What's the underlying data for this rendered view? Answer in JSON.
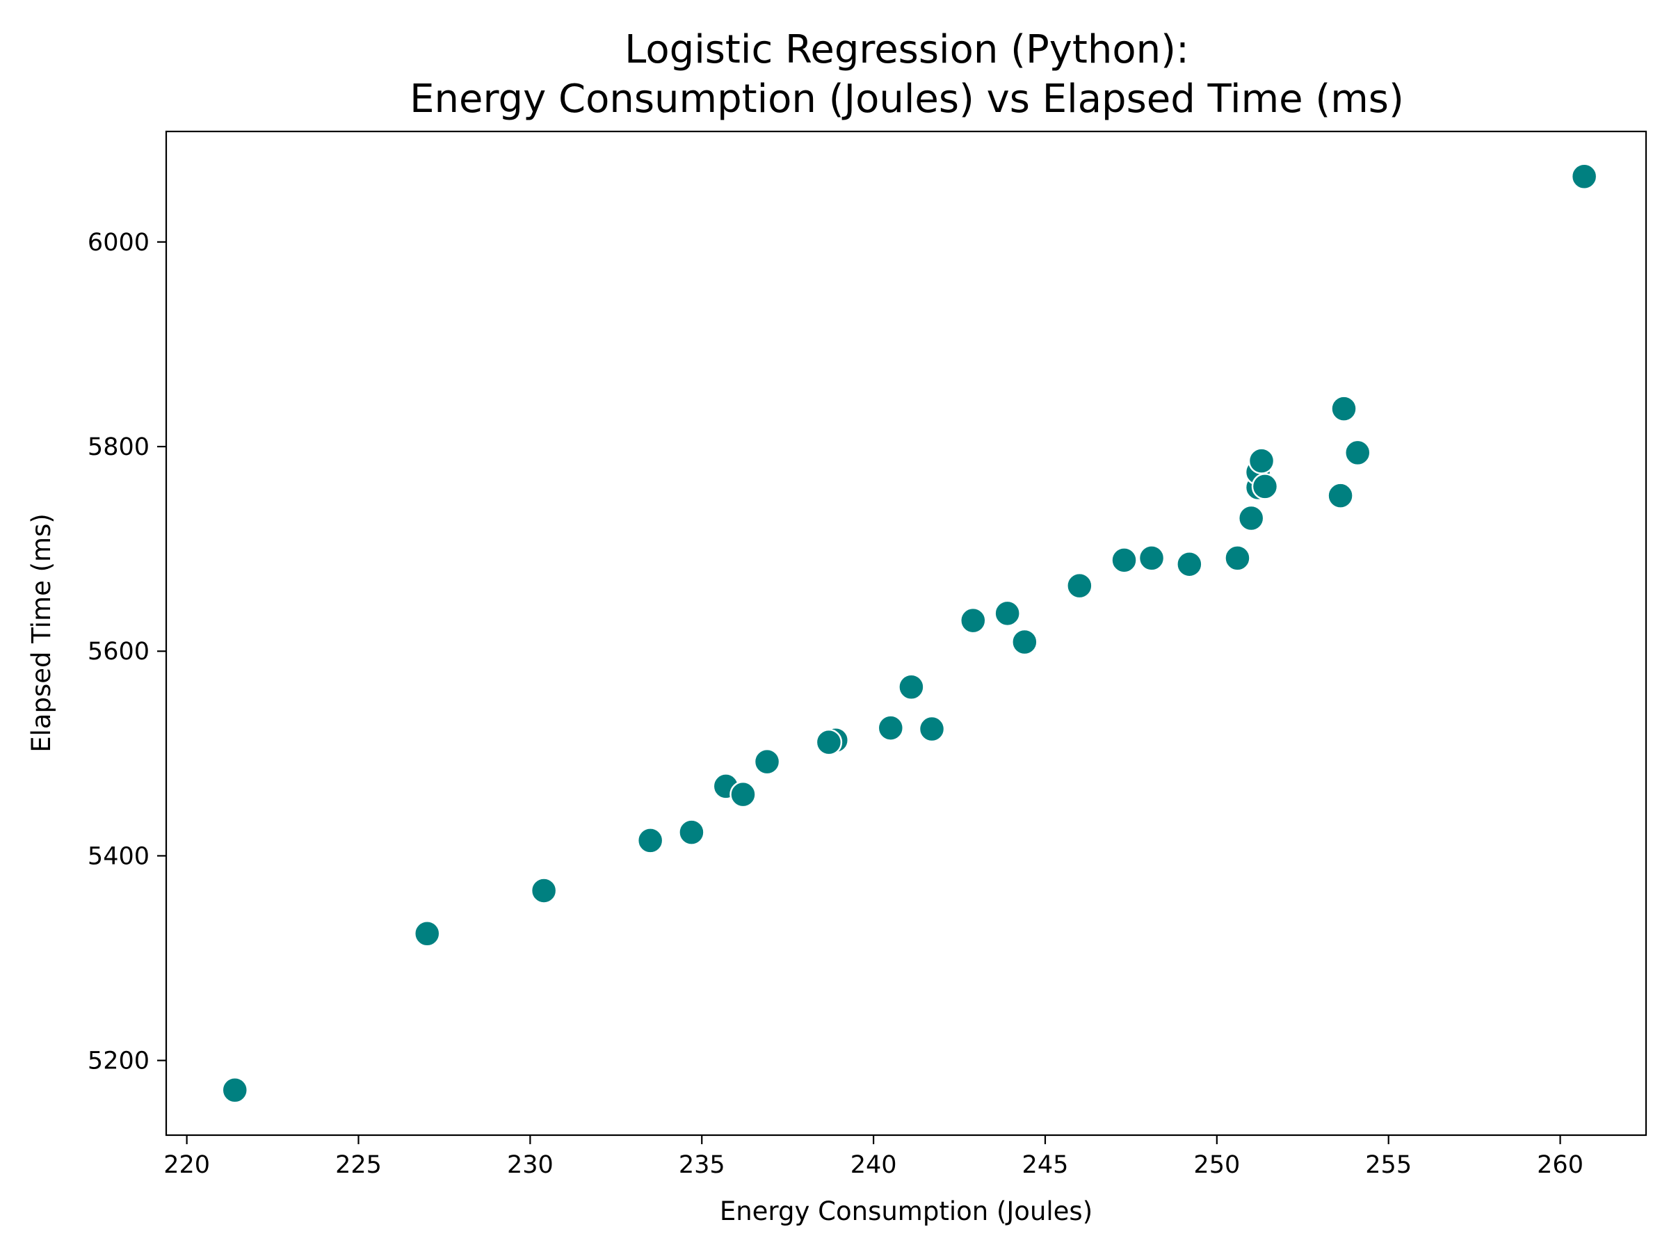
{
  "chart_data": {
    "type": "scatter",
    "title": [
      "Logistic Regression (Python):",
      "Energy Consumption (Joules) vs Elapsed Time (ms)"
    ],
    "xlabel": "Energy Consumption (Joules)",
    "ylabel": "Elapsed Time (ms)",
    "xlim": [
      219.4,
      262.5
    ],
    "ylim": [
      5127,
      6108
    ],
    "xticks": [
      220,
      225,
      230,
      235,
      240,
      245,
      250,
      255,
      260
    ],
    "yticks": [
      5200,
      5400,
      5600,
      5800,
      6000
    ],
    "grid": false,
    "marker_color": "#008080",
    "points": [
      {
        "x": 221.4,
        "y": 5171
      },
      {
        "x": 227.0,
        "y": 5324
      },
      {
        "x": 230.4,
        "y": 5366
      },
      {
        "x": 233.5,
        "y": 5415
      },
      {
        "x": 234.7,
        "y": 5423
      },
      {
        "x": 235.7,
        "y": 5468
      },
      {
        "x": 236.2,
        "y": 5460
      },
      {
        "x": 236.9,
        "y": 5492
      },
      {
        "x": 238.9,
        "y": 5513
      },
      {
        "x": 238.7,
        "y": 5511
      },
      {
        "x": 240.5,
        "y": 5525
      },
      {
        "x": 241.1,
        "y": 5565
      },
      {
        "x": 241.7,
        "y": 5524
      },
      {
        "x": 242.9,
        "y": 5630
      },
      {
        "x": 243.9,
        "y": 5637
      },
      {
        "x": 244.4,
        "y": 5609
      },
      {
        "x": 246.0,
        "y": 5664
      },
      {
        "x": 247.3,
        "y": 5689
      },
      {
        "x": 248.1,
        "y": 5691
      },
      {
        "x": 249.2,
        "y": 5685
      },
      {
        "x": 250.6,
        "y": 5691
      },
      {
        "x": 251.0,
        "y": 5730
      },
      {
        "x": 251.2,
        "y": 5760
      },
      {
        "x": 251.2,
        "y": 5775
      },
      {
        "x": 251.3,
        "y": 5786
      },
      {
        "x": 251.4,
        "y": 5761
      },
      {
        "x": 253.6,
        "y": 5752
      },
      {
        "x": 253.7,
        "y": 5837
      },
      {
        "x": 254.1,
        "y": 5794
      },
      {
        "x": 260.7,
        "y": 6064
      }
    ]
  }
}
